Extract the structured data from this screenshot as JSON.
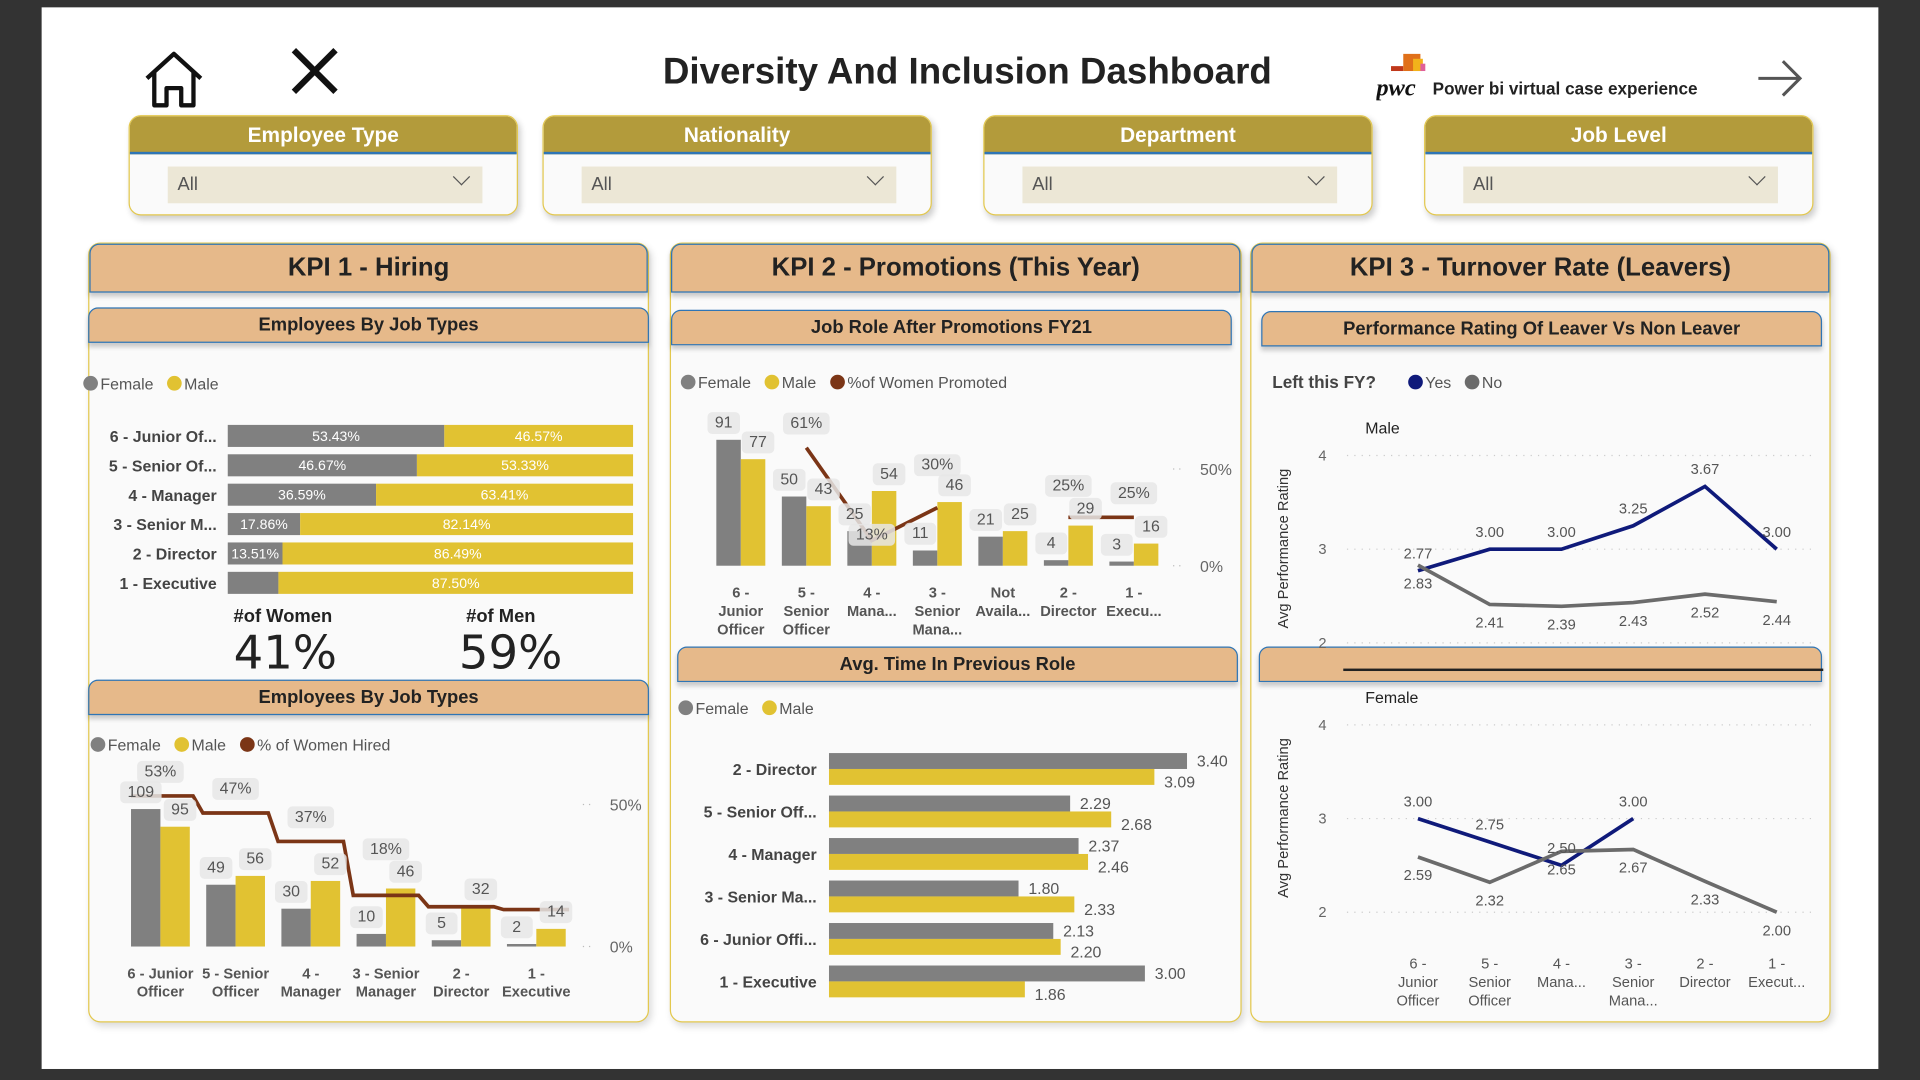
{
  "header": {
    "title": "Diversity And Inclusion Dashboard",
    "brand_logo_text": "pwc",
    "brand_text": "Power bi virtual case experience",
    "icons": [
      "home-icon",
      "close-icon",
      "arrow-right-icon"
    ]
  },
  "slicers": [
    {
      "label": "Employee Type",
      "value": "All"
    },
    {
      "label": "Nationality",
      "value": "All"
    },
    {
      "label": "Department",
      "value": "All"
    },
    {
      "label": "Job Level",
      "value": "All"
    }
  ],
  "kpis": [
    {
      "title": "KPI 1 - Hiring"
    },
    {
      "title": "KPI 2 - Promotions (This Year)"
    },
    {
      "title": "KPI 3 - Turnover Rate (Leavers)"
    }
  ],
  "cards": {
    "women_label": "#of Women",
    "women_value": "41%",
    "men_label": "#of Men",
    "men_value": "59%"
  },
  "colors": {
    "female": "#808080",
    "male": "#e1c232",
    "line": "#7b3516",
    "yes": "#0f1a7a",
    "no": "#6b6b6b",
    "slicer_header": "#b39b3b",
    "panel_header": "#e6b98a"
  },
  "chart_data": [
    {
      "type": "bar",
      "orientation": "horizontal",
      "stacking": "100%",
      "title": "Employees By Job Types",
      "legend": [
        "Female",
        "Male"
      ],
      "categories": [
        "6 - Junior Of...",
        "5 - Senior Of...",
        "4 - Manager",
        "3 - Senior M...",
        "2 - Director",
        "1 - Executive"
      ],
      "series": [
        {
          "name": "Female",
          "values": [
            53.43,
            46.67,
            36.59,
            17.86,
            13.51,
            12.5
          ]
        },
        {
          "name": "Male",
          "values": [
            46.57,
            53.33,
            63.41,
            82.14,
            86.49,
            87.5
          ]
        }
      ]
    },
    {
      "type": "bar+line",
      "title": "Employees By Job Types",
      "legend": [
        "Female",
        "Male",
        "% of Women Hired"
      ],
      "categories": [
        [
          "6 - Junior",
          "Officer"
        ],
        [
          "5 - Senior",
          "Officer"
        ],
        [
          "4 -",
          "Manager"
        ],
        [
          "3 - Senior",
          "Manager"
        ],
        [
          "2 -",
          "Director"
        ],
        [
          "1 -",
          "Executive"
        ]
      ],
      "series": [
        {
          "name": "Female",
          "values": [
            109,
            49,
            30,
            10,
            5,
            2
          ]
        },
        {
          "name": "Male",
          "values": [
            95,
            56,
            52,
            46,
            32,
            14
          ]
        },
        {
          "name": "% of Women Hired",
          "values": [
            53,
            47,
            37,
            18,
            14,
            13
          ],
          "labels": [
            "53%",
            "47%",
            "37%",
            "18%",
            "",
            ""
          ]
        }
      ],
      "y2_ticks": [
        "50%",
        "0%"
      ]
    },
    {
      "type": "bar+line",
      "title": "Job Role After Promotions FY21",
      "legend": [
        "Female",
        "Male",
        "%of Women Promoted"
      ],
      "categories": [
        [
          "6 -",
          "Junior",
          "Officer"
        ],
        [
          "5 -",
          "Senior",
          "Officer"
        ],
        [
          "4 -",
          "Mana..."
        ],
        [
          "3 -",
          "Senior",
          "Mana..."
        ],
        [
          "Not",
          "Availa..."
        ],
        [
          "2 -",
          "Director"
        ],
        [
          "1 -",
          "Execu..."
        ]
      ],
      "series": [
        {
          "name": "Female",
          "values": [
            91,
            50,
            25,
            11,
            21,
            4,
            3
          ]
        },
        {
          "name": "Male",
          "values": [
            77,
            43,
            54,
            46,
            25,
            29,
            16
          ]
        },
        {
          "name": "%of Women Promoted",
          "values": [
            null,
            61,
            13,
            30,
            null,
            25,
            25
          ],
          "labels": [
            "",
            "61%",
            "13%",
            "30%",
            "",
            "25%",
            "25%"
          ]
        }
      ],
      "y2_ticks": [
        "50%",
        "0%"
      ]
    },
    {
      "type": "bar",
      "orientation": "horizontal",
      "title": "Avg. Time In Previous Role",
      "legend": [
        "Female",
        "Male"
      ],
      "categories": [
        "2 - Director",
        "5 - Senior Off...",
        "4 - Manager",
        "3 - Senior Ma...",
        "6 - Junior Offi...",
        "1 - Executive"
      ],
      "series": [
        {
          "name": "Female",
          "values": [
            3.4,
            2.29,
            2.37,
            1.8,
            2.13,
            3.0
          ]
        },
        {
          "name": "Male",
          "values": [
            3.09,
            2.68,
            2.46,
            2.33,
            2.2,
            1.86
          ]
        }
      ]
    },
    {
      "type": "line",
      "title": "Performance Rating Of Leaver Vs Non Leaver",
      "legend_title": "Left this FY?",
      "legend": [
        "Yes",
        "No"
      ],
      "panel": "Male",
      "ylabel": "Avg Performance Rating",
      "ylim": [
        2,
        4
      ],
      "y_ticks": [
        "4",
        "3",
        "2"
      ],
      "categories": [
        [
          "6 -",
          "Junior",
          "Officer"
        ],
        [
          "5 -",
          "Senior",
          "Officer"
        ],
        [
          "4 -",
          "Mana..."
        ],
        [
          "3 -",
          "Senior",
          "Mana..."
        ],
        [
          "2 -",
          "Director"
        ],
        [
          "1 -",
          "Execut..."
        ]
      ],
      "series": [
        {
          "name": "Yes",
          "values": [
            2.77,
            3.0,
            3.0,
            3.25,
            3.67,
            3.0
          ]
        },
        {
          "name": "No",
          "values": [
            2.83,
            2.41,
            2.39,
            2.43,
            2.52,
            2.44
          ]
        }
      ]
    },
    {
      "type": "line",
      "panel": "Female",
      "ylabel": "Avg Performance Rating",
      "ylim": [
        2,
        4
      ],
      "y_ticks": [
        "4",
        "3",
        "2"
      ],
      "categories": [
        [
          "6 -",
          "Junior",
          "Officer"
        ],
        [
          "5 -",
          "Senior",
          "Officer"
        ],
        [
          "4 -",
          "Mana..."
        ],
        [
          "3 -",
          "Senior",
          "Mana..."
        ],
        [
          "2 -",
          "Director"
        ],
        [
          "1 -",
          "Execut..."
        ]
      ],
      "series": [
        {
          "name": "Yes",
          "values": [
            3.0,
            2.75,
            2.5,
            3.0,
            null,
            null
          ]
        },
        {
          "name": "No",
          "values": [
            2.59,
            2.32,
            2.65,
            2.67,
            2.33,
            2.0
          ]
        }
      ]
    }
  ]
}
